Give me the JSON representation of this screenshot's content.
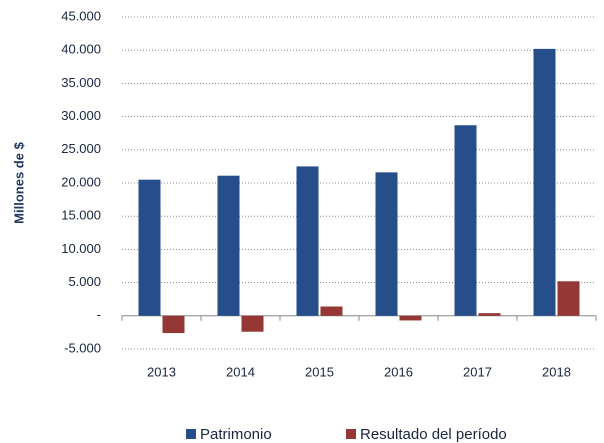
{
  "chart_data": {
    "type": "bar",
    "y_label": "Millones de $",
    "categories": [
      "2013",
      "2014",
      "2015",
      "2016",
      "2017",
      "2018"
    ],
    "series": [
      {
        "name": "Patrimonio",
        "color": "#264e8a",
        "values": [
          20500,
          21100,
          22500,
          21600,
          28700,
          40200
        ]
      },
      {
        "name": "Resultado del período",
        "color": "#953735",
        "values": [
          -2600,
          -2400,
          1400,
          -700,
          400,
          5200
        ]
      }
    ],
    "ylim": [
      -5000,
      45000
    ],
    "yticks": [
      {
        "value": -5000,
        "label": "-5.000"
      },
      {
        "value": 0,
        "label": "-"
      },
      {
        "value": 5000,
        "label": "5.000"
      },
      {
        "value": 10000,
        "label": "10.000"
      },
      {
        "value": 15000,
        "label": "15.000"
      },
      {
        "value": 20000,
        "label": "20.000"
      },
      {
        "value": 25000,
        "label": "25.000"
      },
      {
        "value": 30000,
        "label": "30.000"
      },
      {
        "value": 35000,
        "label": "35.000"
      },
      {
        "value": 40000,
        "label": "40.000"
      },
      {
        "value": 45000,
        "label": "45.000"
      }
    ],
    "grid": true,
    "legend": "bottom"
  }
}
